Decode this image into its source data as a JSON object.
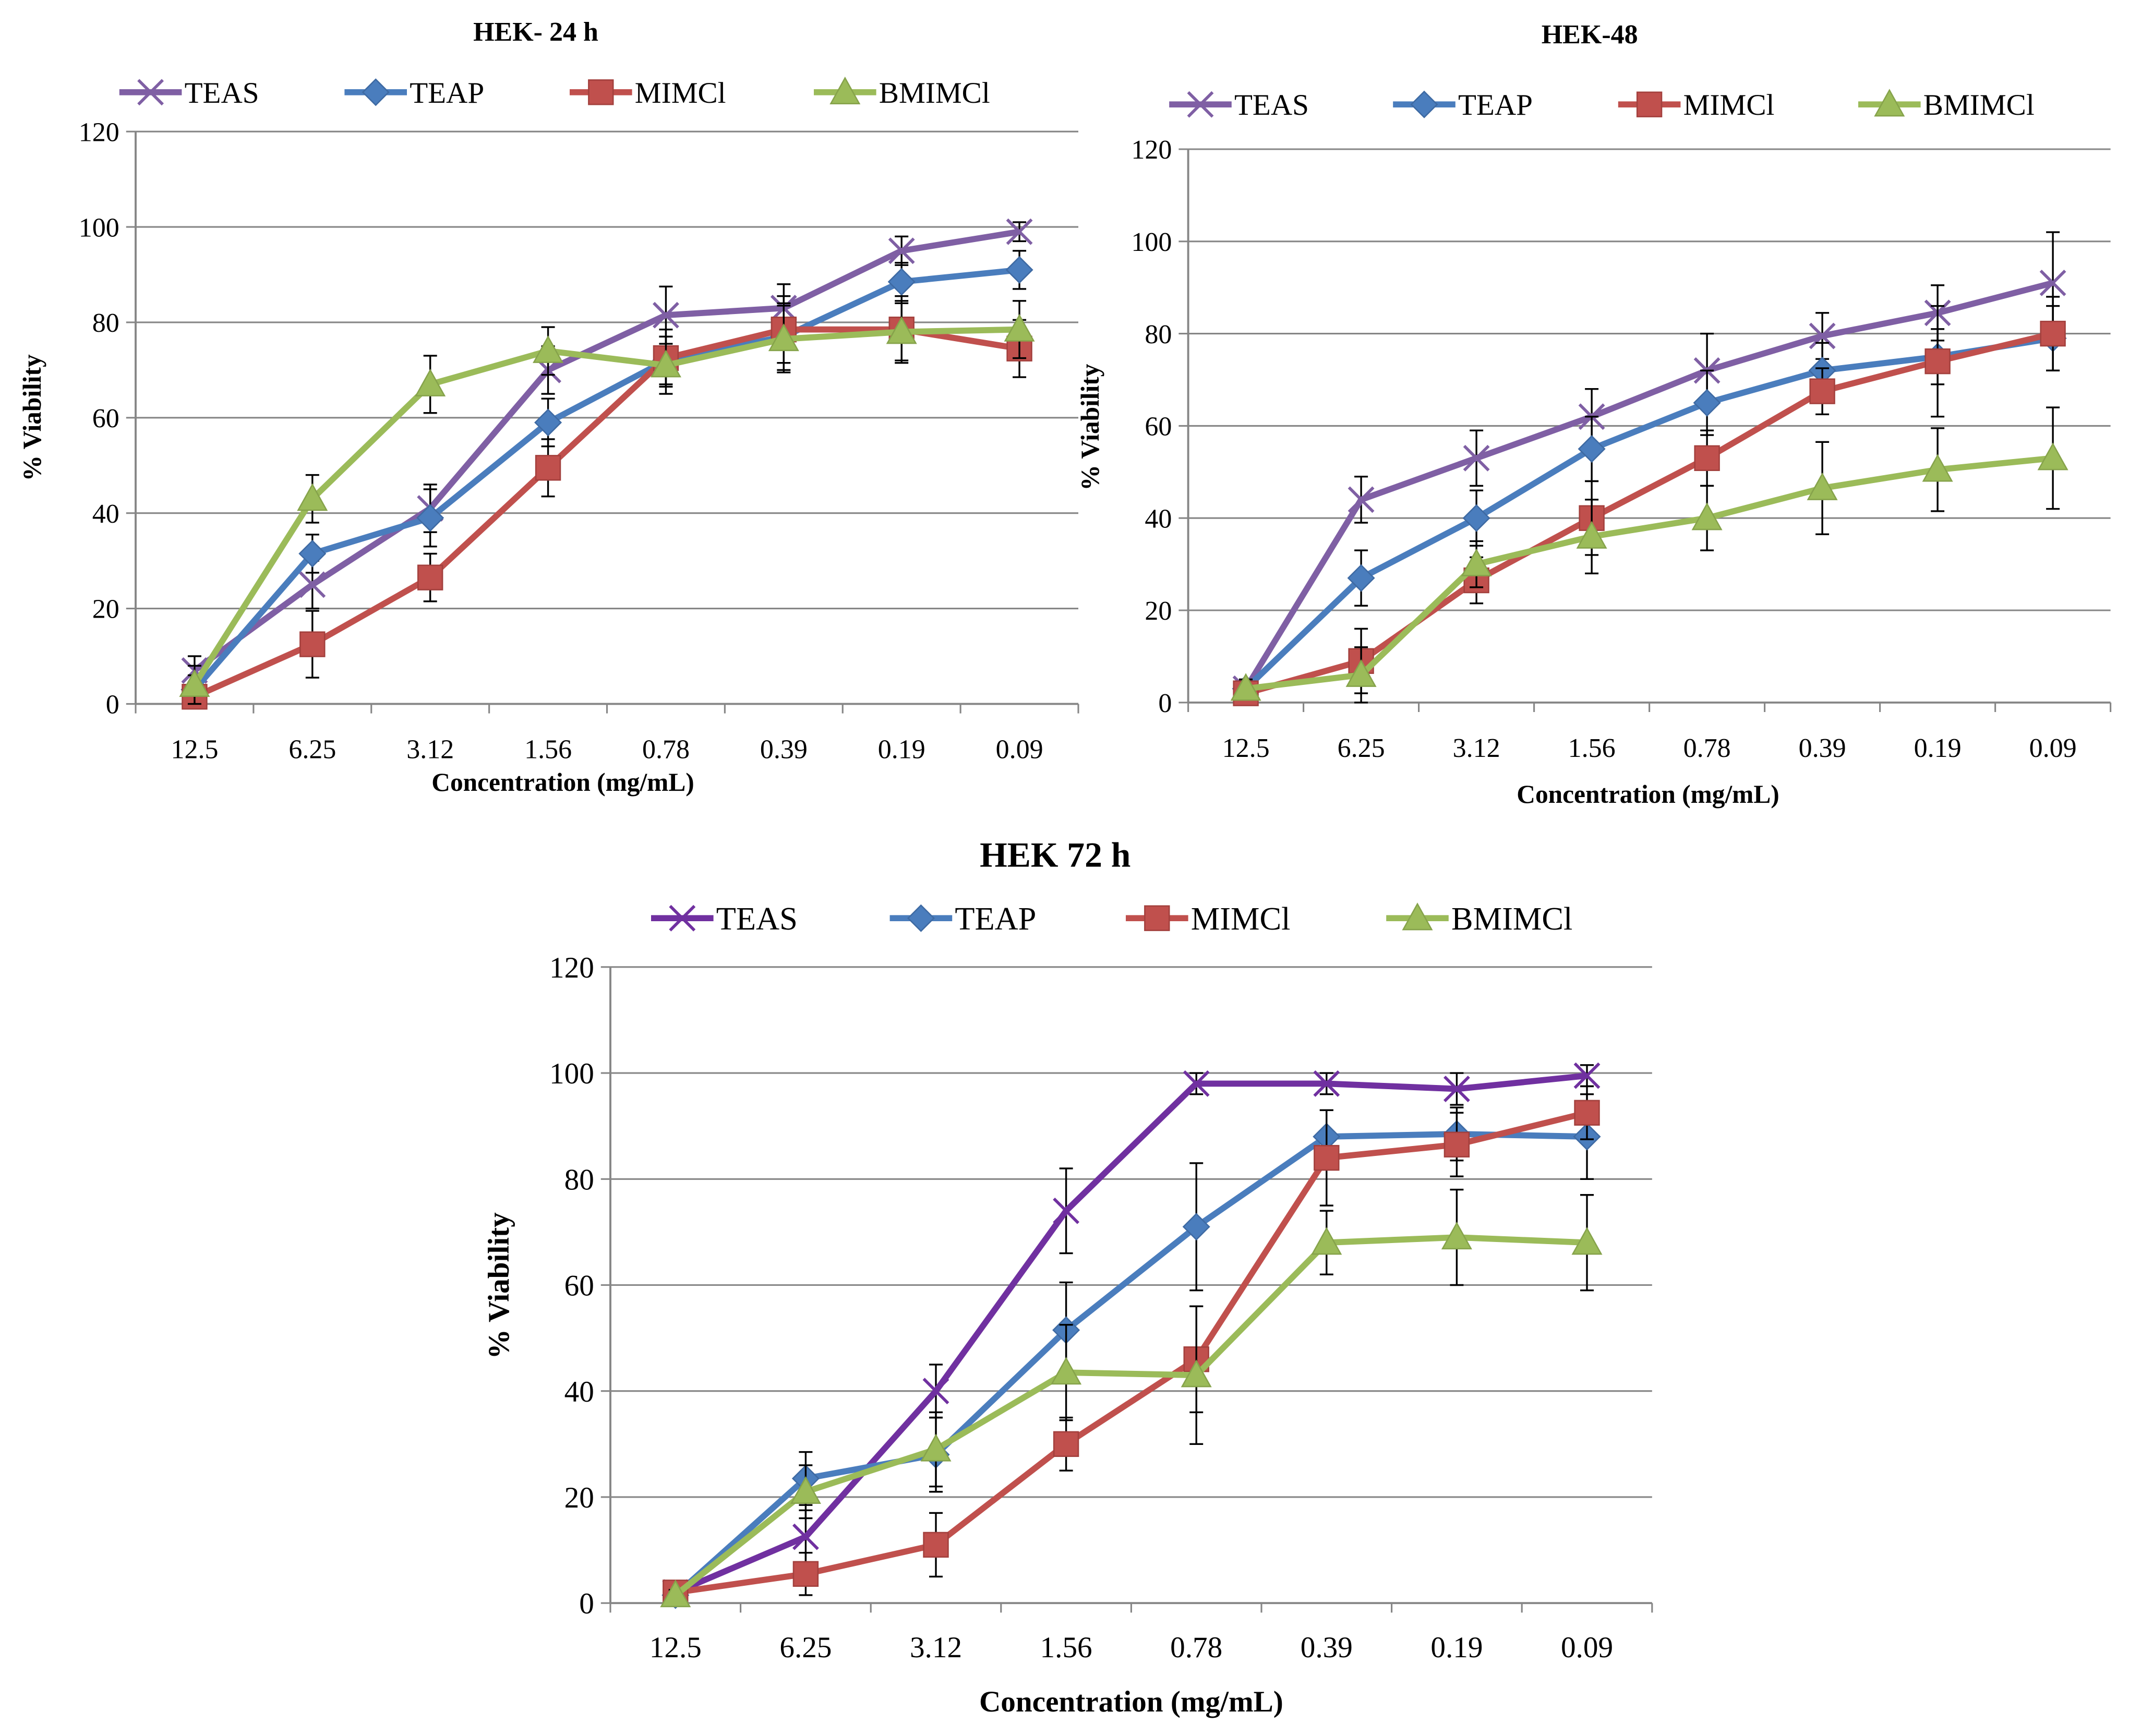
{
  "chart_data": [
    {
      "type": "line",
      "title": "HEK- 24 h",
      "xlabel": "Concentration (mg/mL)",
      "ylabel": "% Viability",
      "ylim": [
        0,
        120
      ],
      "yticks": [
        0,
        20,
        40,
        60,
        80,
        100,
        120
      ],
      "grid": true,
      "legend": "top",
      "categories": [
        "12.5",
        "6.25",
        "3.12",
        "1.56",
        "0.78",
        "0.39",
        "0.19",
        "0.09"
      ],
      "series": [
        {
          "name": "TEAS",
          "marker": "x",
          "values": [
            7,
            25,
            41,
            70,
            81.5,
            83,
            95,
            99
          ],
          "errors": [
            3,
            5,
            5,
            5,
            6,
            5,
            3,
            2
          ]
        },
        {
          "name": "TEAP",
          "marker": "diamond",
          "values": [
            3,
            31.5,
            39,
            59,
            72,
            77,
            88.5,
            91
          ],
          "errors": [
            3,
            4,
            6,
            5,
            5,
            7,
            4,
            4
          ]
        },
        {
          "name": "MIMCl",
          "marker": "square",
          "values": [
            1.5,
            12.5,
            26.5,
            49.5,
            72.5,
            78.5,
            78.5,
            74.5
          ],
          "errors": [
            3,
            7,
            5,
            6,
            6,
            7,
            7,
            6
          ]
        },
        {
          "name": "BMIMCl",
          "marker": "triangle",
          "values": [
            4,
            43,
            67,
            74,
            71,
            76.5,
            78,
            78.5
          ],
          "errors": [
            4,
            5,
            6,
            5,
            6,
            7,
            6,
            6
          ]
        }
      ]
    },
    {
      "type": "line",
      "title": "HEK-48",
      "xlabel": "Concentration (mg/mL)",
      "ylabel": "% Viability",
      "ylim": [
        0,
        120
      ],
      "yticks": [
        0,
        20,
        40,
        60,
        80,
        100,
        120
      ],
      "grid": true,
      "legend": "top",
      "categories": [
        "12.5",
        "6.25",
        "3.12",
        "1.56",
        "0.78",
        "0.39",
        "0.19",
        "0.09"
      ],
      "series": [
        {
          "name": "TEAS",
          "marker": "x",
          "values": [
            3,
            44,
            53,
            62,
            72,
            79.5,
            84.5,
            91
          ],
          "errors": [
            2,
            5,
            6,
            6,
            8,
            5,
            6,
            11
          ]
        },
        {
          "name": "TEAP",
          "marker": "diamond",
          "values": [
            3,
            27,
            40,
            55,
            65,
            72,
            75,
            79
          ],
          "errors": [
            2,
            6,
            6,
            7,
            7,
            6,
            6,
            7
          ]
        },
        {
          "name": "MIMCl",
          "marker": "square",
          "values": [
            2,
            9,
            26.5,
            40,
            53,
            67.5,
            74,
            80
          ],
          "errors": [
            2,
            7,
            5,
            8,
            6,
            5,
            12,
            8
          ]
        },
        {
          "name": "BMIMCl",
          "marker": "triangle",
          "values": [
            3,
            6,
            30,
            36,
            40,
            46.5,
            50.5,
            53
          ],
          "errors": [
            2,
            6,
            5,
            8,
            7,
            10,
            9,
            11
          ]
        }
      ]
    },
    {
      "type": "line",
      "title": "HEK 72 h",
      "xlabel": "Concentration (mg/mL)",
      "ylabel": "% Viability",
      "ylim": [
        0,
        120
      ],
      "yticks": [
        0,
        20,
        40,
        60,
        80,
        100,
        120
      ],
      "grid": true,
      "legend": "top",
      "categories": [
        "12.5",
        "6.25",
        "3.12",
        "1.56",
        "0.78",
        "0.39",
        "0.19",
        "0.09"
      ],
      "series": [
        {
          "name": "TEAS",
          "marker": "x",
          "values": [
            2,
            12.5,
            40,
            74,
            98,
            98,
            97,
            99.5
          ],
          "errors": [
            1,
            5,
            5,
            8,
            2,
            2,
            3,
            2
          ]
        },
        {
          "name": "TEAP",
          "marker": "diamond",
          "values": [
            1.5,
            23.5,
            28,
            51.5,
            71,
            88,
            88.5,
            88
          ],
          "errors": [
            1,
            5,
            7,
            9,
            12,
            5,
            5,
            8
          ]
        },
        {
          "name": "MIMCl",
          "marker": "square",
          "values": [
            2,
            5.5,
            11,
            30,
            46,
            84,
            86.5,
            92.5
          ],
          "errors": [
            1,
            4,
            6,
            5,
            10,
            9,
            6,
            5
          ]
        },
        {
          "name": "BMIMCl",
          "marker": "triangle",
          "values": [
            1.5,
            21,
            29,
            43.5,
            43,
            68,
            69,
            68
          ],
          "errors": [
            1,
            5,
            7,
            9,
            13,
            6,
            9,
            9
          ]
        }
      ]
    }
  ],
  "colors": {
    "TEAS": "#7f5fa4",
    "TEAP": "#4a7dbd",
    "MIMCl": "#c0504d",
    "BMIMCl": "#9bbb59",
    "TEAS_72h": "#7030a0",
    "gridline": "#868686",
    "axis": "#868686",
    "errorbar": "#000000"
  }
}
